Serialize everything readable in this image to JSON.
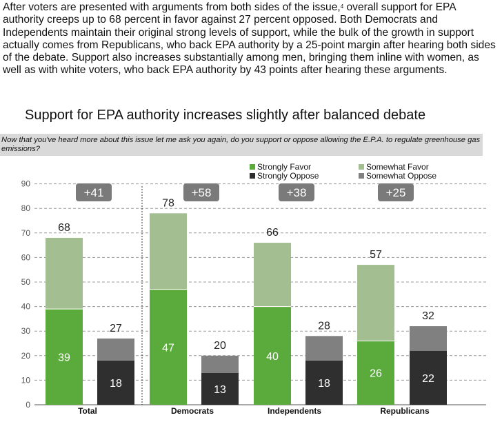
{
  "paragraph": {
    "part1": "After voters are presented with arguments from both sides of the issue,",
    "footnote": "4",
    "part2": " overall support for EPA authority creeps up to 68 percent in favor against 27 percent opposed.  Both Democrats and Independents maintain their original strong levels of support, while the bulk of the growth in support actually comes from Republicans, who back EPA authority by a 25-point margin after hearing both sides of the debate.  Support also increases substantially among men, bringing them inline with women, as well as with white voters, who back EPA authority by 43 points after hearing these arguments."
  },
  "question": "Now that you've heard more about this issue let me ask you again, do you support or oppose allowing the E.P.A. to regulate greenhouse gas emissions?",
  "chart_data": {
    "type": "bar",
    "title": "Support for EPA authority increases slightly after balanced debate",
    "categories": [
      "Total",
      "Democrats",
      "Independents",
      "Republicans"
    ],
    "series": [
      {
        "name": "Strongly Favor",
        "color": "#5aab3c",
        "values": [
          39,
          47,
          40,
          26
        ]
      },
      {
        "name": "Somewhat Favor",
        "color": "#a3bf91",
        "values": [
          29,
          31,
          26,
          31
        ]
      },
      {
        "name": "Strongly Oppose",
        "color": "#2f2f2f",
        "values": [
          18,
          13,
          18,
          22
        ]
      },
      {
        "name": "Somewhat Oppose",
        "color": "#808080",
        "values": [
          9,
          7,
          10,
          10
        ]
      }
    ],
    "favor_totals": [
      68,
      78,
      66,
      57
    ],
    "oppose_totals": [
      27,
      20,
      28,
      32
    ],
    "net_labels": [
      "+41",
      "+58",
      "+38",
      "+25"
    ],
    "ylim": [
      0,
      90
    ],
    "yticks": [
      0,
      10,
      20,
      30,
      40,
      50,
      60,
      70,
      80,
      90
    ],
    "grid": true,
    "grid_style": "dashed",
    "legend_position": "top-right"
  }
}
